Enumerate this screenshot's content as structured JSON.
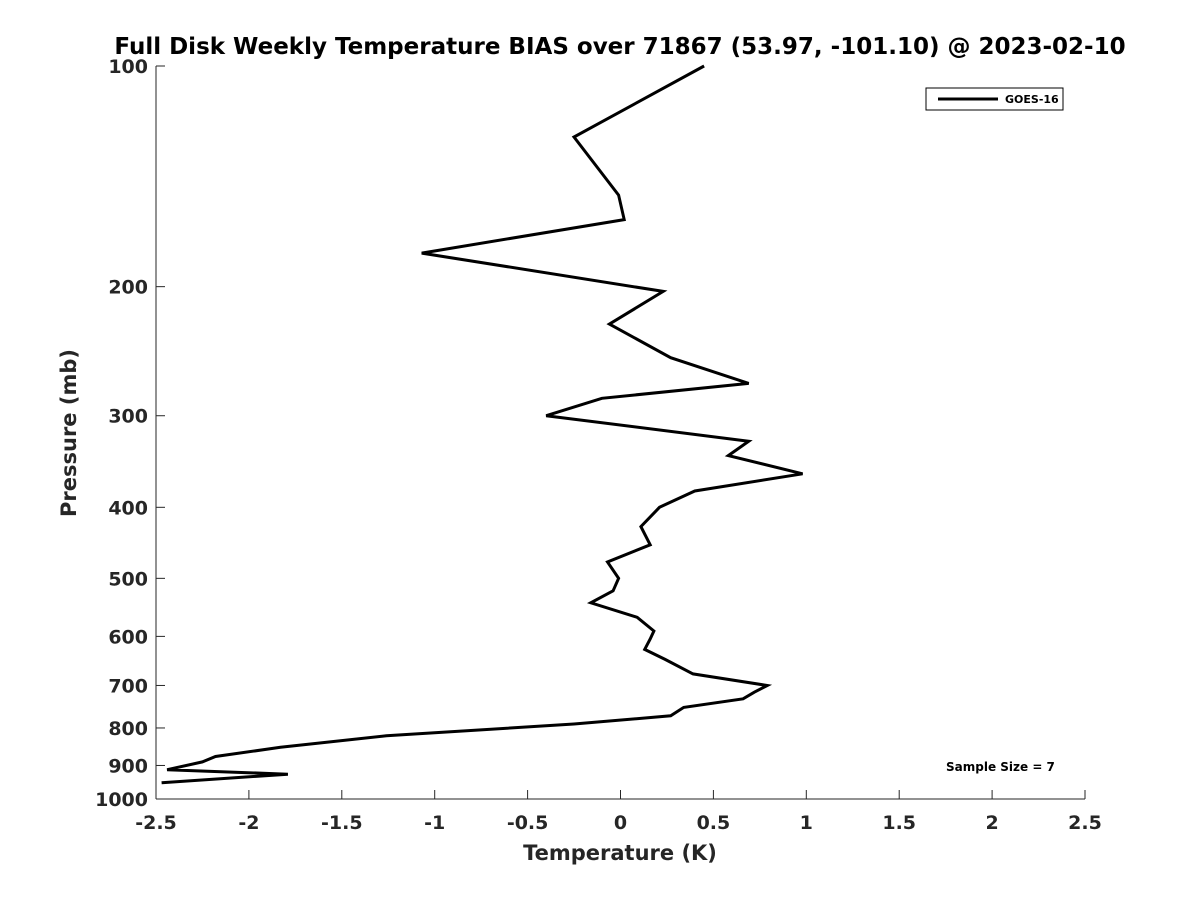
{
  "chart_data": {
    "type": "line",
    "title": "Full Disk Weekly Temperature BIAS over 71867 (53.97, -101.10) @ 2023-02-10",
    "xlabel": "Temperature (K)",
    "ylabel": "Pressure (mb)",
    "xlim": [
      -2.5,
      2.5
    ],
    "ylim": [
      1000,
      100
    ],
    "y_scale": "log",
    "y_reversed": true,
    "x_ticks": [
      -2.5,
      -2,
      -1.5,
      -1,
      -0.5,
      0,
      0.5,
      1,
      1.5,
      2,
      2.5
    ],
    "x_tick_labels": [
      "-2.5",
      "-2",
      "-1.5",
      "-1",
      "-0.5",
      "0",
      "0.5",
      "1",
      "1.5",
      "2",
      "2.5"
    ],
    "y_ticks": [
      100,
      200,
      300,
      400,
      500,
      600,
      700,
      800,
      900,
      1000
    ],
    "y_tick_labels": [
      "100",
      "200",
      "300",
      "400",
      "500",
      "600",
      "700",
      "800",
      "900",
      "1000"
    ],
    "grid": false,
    "legend_position": "top-right",
    "series": [
      {
        "name": "GOES-16",
        "color": "#000000",
        "points": [
          {
            "x": 0.45,
            "y": 100
          },
          {
            "x": -0.25,
            "y": 125
          },
          {
            "x": -0.01,
            "y": 150
          },
          {
            "x": 0.02,
            "y": 162
          },
          {
            "x": -1.07,
            "y": 180
          },
          {
            "x": 0.23,
            "y": 203
          },
          {
            "x": -0.06,
            "y": 225
          },
          {
            "x": 0.27,
            "y": 250
          },
          {
            "x": 0.69,
            "y": 271
          },
          {
            "x": -0.1,
            "y": 284
          },
          {
            "x": -0.4,
            "y": 300
          },
          {
            "x": 0.69,
            "y": 325
          },
          {
            "x": 0.58,
            "y": 340
          },
          {
            "x": 0.98,
            "y": 360
          },
          {
            "x": 0.4,
            "y": 380
          },
          {
            "x": 0.21,
            "y": 400
          },
          {
            "x": 0.11,
            "y": 425
          },
          {
            "x": 0.16,
            "y": 450
          },
          {
            "x": -0.07,
            "y": 475
          },
          {
            "x": -0.01,
            "y": 500
          },
          {
            "x": -0.04,
            "y": 520
          },
          {
            "x": -0.16,
            "y": 540
          },
          {
            "x": 0.09,
            "y": 565
          },
          {
            "x": 0.18,
            "y": 590
          },
          {
            "x": 0.16,
            "y": 605
          },
          {
            "x": 0.13,
            "y": 625
          },
          {
            "x": 0.24,
            "y": 645
          },
          {
            "x": 0.39,
            "y": 675
          },
          {
            "x": 0.79,
            "y": 700
          },
          {
            "x": 0.72,
            "y": 715
          },
          {
            "x": 0.66,
            "y": 730
          },
          {
            "x": 0.34,
            "y": 750
          },
          {
            "x": 0.27,
            "y": 770
          },
          {
            "x": -0.25,
            "y": 790
          },
          {
            "x": -1.26,
            "y": 820
          },
          {
            "x": -1.83,
            "y": 850
          },
          {
            "x": -2.18,
            "y": 875
          },
          {
            "x": -2.25,
            "y": 890
          },
          {
            "x": -2.44,
            "y": 912
          },
          {
            "x": -1.79,
            "y": 925
          },
          {
            "x": -2.47,
            "y": 950
          }
        ]
      }
    ],
    "annotations": [
      "Sample Size = 7"
    ]
  }
}
